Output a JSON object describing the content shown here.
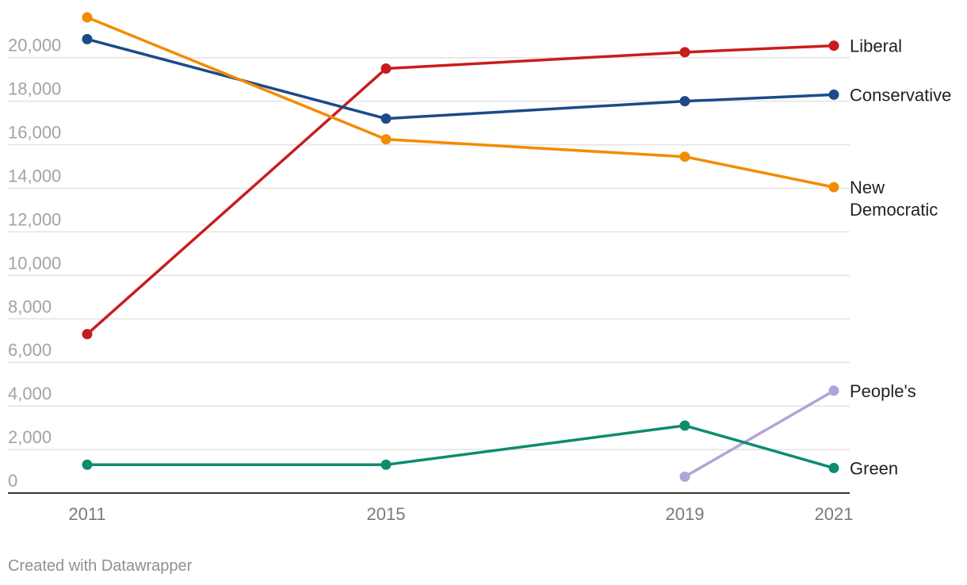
{
  "chart_data": {
    "type": "line",
    "x": [
      "2011",
      "2015",
      "2019",
      "2021"
    ],
    "ylim": [
      0,
      20000
    ],
    "yticks": [
      0,
      2000,
      4000,
      6000,
      8000,
      10000,
      12000,
      14000,
      16000,
      18000,
      20000
    ],
    "ytick_labels": [
      "0",
      "2,000",
      "4,000",
      "6,000",
      "8,000",
      "10,000",
      "12,000",
      "14,000",
      "16,000",
      "18,000",
      "20,000"
    ],
    "grid": true,
    "legend": "direct labels at right end of lines",
    "series": [
      {
        "name": "Liberal",
        "color": "#c71e1d",
        "values": [
          7300,
          19500,
          20250,
          20550
        ]
      },
      {
        "name": "Conservative",
        "color": "#1d4a87",
        "values": [
          20850,
          17200,
          18000,
          18300
        ]
      },
      {
        "name": "New Democratic",
        "label_lines": [
          "New",
          "Democratic"
        ],
        "color": "#f28c00",
        "values": [
          21850,
          16250,
          15450,
          14050
        ]
      },
      {
        "name": "People's",
        "color": "#b3a3d8",
        "values": [
          null,
          null,
          750,
          4700
        ]
      },
      {
        "name": "Green",
        "color": "#0d8c6e",
        "values": [
          1300,
          1300,
          3100,
          1150
        ]
      }
    ]
  },
  "footer": {
    "credit": "Created with Datawrapper"
  }
}
